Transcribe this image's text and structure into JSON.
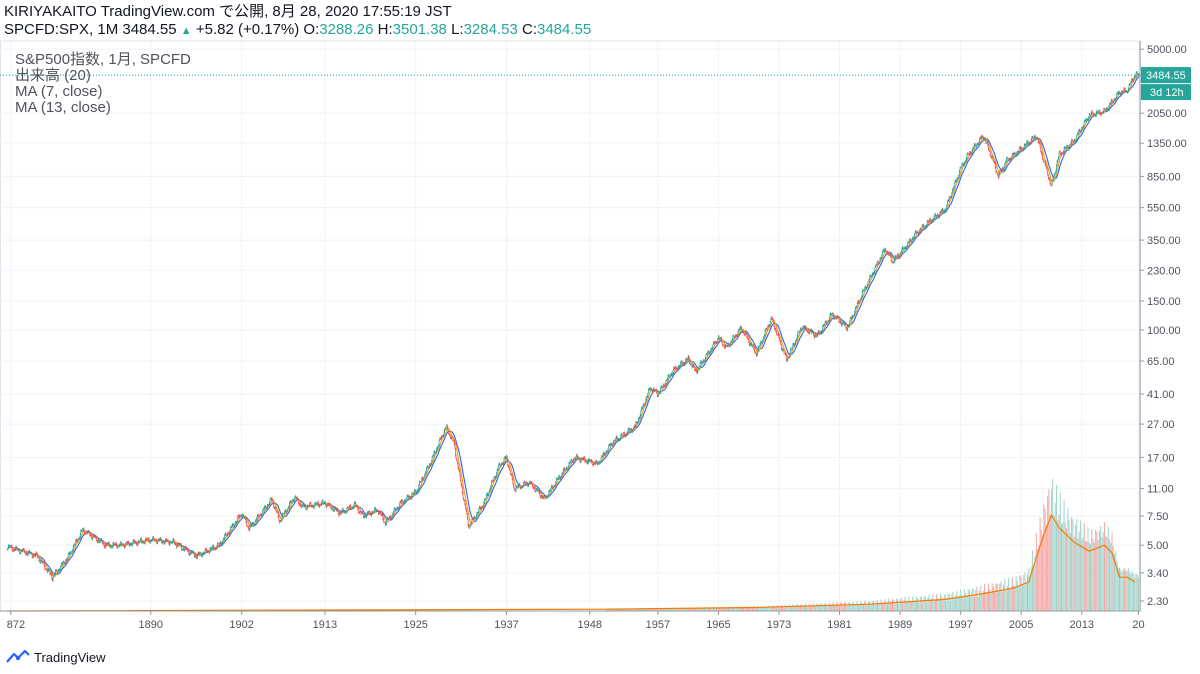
{
  "header": {
    "line1": "KIRIYAKAITO TradingView.com で公開, 8月 28, 2020 17:55:19 JST",
    "symbol": "SPCFD:SPX, 1M",
    "last": "3484.55",
    "change": "+5.82 (+0.17%)",
    "o_label": "O:",
    "o_value": "3288.26",
    "h_label": "H:",
    "h_value": "3501.38",
    "l_label": "L:",
    "l_value": "3284.53",
    "c_label": "C:",
    "c_value": "3484.55"
  },
  "legend": {
    "title": "S&P500指数, 1月, SPCFD",
    "volume": "出来高 (20)",
    "ma7": "MA (7, close)",
    "ma13": "MA (13, close)"
  },
  "price_badge": "3484.55",
  "countdown_badge": "3d 12h",
  "branding": "TradingView",
  "colors": {
    "up": "#26a69a",
    "down": "#ef5350",
    "ma7": "#ff9800",
    "ma13": "#2962ff",
    "vol_ma": "#f57c00",
    "badge": "#26a69a"
  },
  "chart_data": {
    "type": "line",
    "y_scale": "log",
    "ylim": [
      2.0,
      5600
    ],
    "xlim": [
      1871,
      2020.7
    ],
    "y_ticks": [
      "5000.00",
      "3450.00",
      "2050.00",
      "1350.00",
      "850.00",
      "550.00",
      "350.00",
      "230.00",
      "150.00",
      "100.00",
      "65.00",
      "41.00",
      "27.00",
      "17.00",
      "11.00",
      "7.50",
      "5.00",
      "3.40",
      "2.30"
    ],
    "x_ticks": [
      "872",
      "1890",
      "1902",
      "1913",
      "1925",
      "1937",
      "1948",
      "1957",
      "1965",
      "1973",
      "1981",
      "1989",
      "1997",
      "2005",
      "2013",
      "20"
    ],
    "x_tick_years": [
      1871.5,
      1890,
      1902,
      1913,
      1925,
      1937,
      1948,
      1957,
      1965,
      1973,
      1981,
      1989,
      1997,
      2005,
      2013,
      2020.5
    ],
    "series": [
      {
        "name": "S&P500指数",
        "points": [
          [
            1871,
            4.9
          ],
          [
            1873,
            4.6
          ],
          [
            1875,
            4.3
          ],
          [
            1877,
            3.2
          ],
          [
            1879,
            4.2
          ],
          [
            1881,
            6.2
          ],
          [
            1884,
            5.0
          ],
          [
            1886,
            5.0
          ],
          [
            1888,
            5.2
          ],
          [
            1890,
            5.4
          ],
          [
            1893,
            5.2
          ],
          [
            1896,
            4.3
          ],
          [
            1899,
            5.0
          ],
          [
            1902,
            7.8
          ],
          [
            1903,
            6.3
          ],
          [
            1906,
            9.5
          ],
          [
            1907,
            7.0
          ],
          [
            1909,
            9.8
          ],
          [
            1910,
            8.5
          ],
          [
            1913,
            9.0
          ],
          [
            1915,
            7.8
          ],
          [
            1917,
            8.8
          ],
          [
            1918,
            7.5
          ],
          [
            1920,
            8.2
          ],
          [
            1921,
            6.8
          ],
          [
            1923,
            9.0
          ],
          [
            1925,
            10.5
          ],
          [
            1927,
            16.0
          ],
          [
            1929,
            26.0
          ],
          [
            1930,
            21.0
          ],
          [
            1932,
            6.5
          ],
          [
            1934,
            9.0
          ],
          [
            1936,
            15.0
          ],
          [
            1937,
            17.0
          ],
          [
            1938,
            11.0
          ],
          [
            1940,
            12.0
          ],
          [
            1942,
            9.5
          ],
          [
            1944,
            13.0
          ],
          [
            1946,
            17.0
          ],
          [
            1949,
            15.5
          ],
          [
            1951,
            21.0
          ],
          [
            1954,
            26.0
          ],
          [
            1956,
            45.0
          ],
          [
            1957,
            41.0
          ],
          [
            1959,
            57.0
          ],
          [
            1961,
            67.0
          ],
          [
            1962,
            56.0
          ],
          [
            1965,
            90.0
          ],
          [
            1966,
            78.0
          ],
          [
            1968,
            103.0
          ],
          [
            1970,
            72.0
          ],
          [
            1972,
            118.0
          ],
          [
            1974,
            66.0
          ],
          [
            1976,
            105.0
          ],
          [
            1978,
            92.0
          ],
          [
            1980,
            125.0
          ],
          [
            1982,
            103.0
          ],
          [
            1984,
            166.0
          ],
          [
            1987,
            310.0
          ],
          [
            1988,
            260.0
          ],
          [
            1990,
            330.0
          ],
          [
            1991,
            380.0
          ],
          [
            1993,
            460.0
          ],
          [
            1995,
            540.0
          ],
          [
            1997,
            950.0
          ],
          [
            1998,
            1150.0
          ],
          [
            2000,
            1500.0
          ],
          [
            2001,
            1150.0
          ],
          [
            2002,
            850.0
          ],
          [
            2003,
            1050.0
          ],
          [
            2005,
            1250.0
          ],
          [
            2007,
            1500.0
          ],
          [
            2009,
            740.0
          ],
          [
            2010,
            1150.0
          ],
          [
            2012,
            1400.0
          ],
          [
            2014,
            2000.0
          ],
          [
            2016,
            2100.0
          ],
          [
            2018,
            2750.0
          ],
          [
            2019,
            2800.0
          ],
          [
            2020,
            3484.55
          ]
        ]
      },
      {
        "name": "出来高",
        "points": [
          [
            1871,
            2.0
          ],
          [
            1950,
            2.05
          ],
          [
            1970,
            2.1
          ],
          [
            1985,
            2.2
          ],
          [
            1995,
            2.35
          ],
          [
            2000,
            2.55
          ],
          [
            2004,
            2.75
          ],
          [
            2006,
            3.0
          ],
          [
            2007,
            4.2
          ],
          [
            2008,
            5.8
          ],
          [
            2009,
            7.6
          ],
          [
            2010,
            6.4
          ],
          [
            2012,
            5.2
          ],
          [
            2014,
            4.6
          ],
          [
            2016,
            5.0
          ],
          [
            2017,
            4.5
          ],
          [
            2018,
            3.2
          ],
          [
            2019,
            3.2
          ],
          [
            2020,
            3.0
          ]
        ]
      }
    ]
  }
}
